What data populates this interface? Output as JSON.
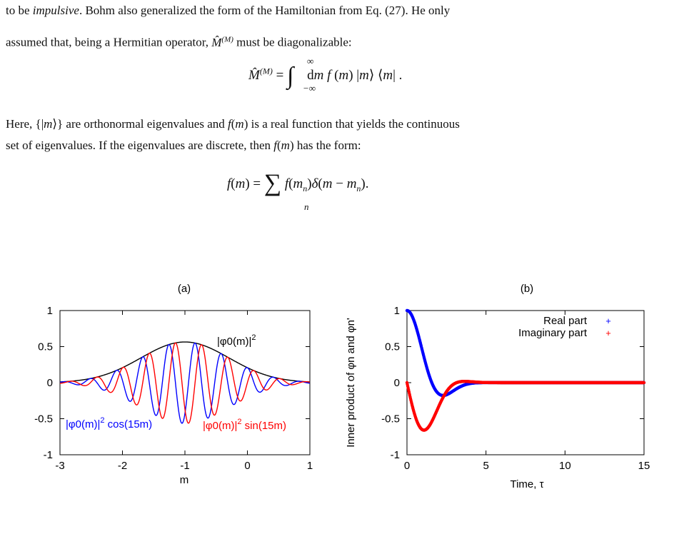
{
  "text": {
    "line1_italic": "impulsive",
    "line1_pre": "to be ",
    "line1_post": ".  Bohm also generalized the form of the Hamiltonian from Eq.  (27).  He only",
    "line2": "assumed that, being a Hermitian operator,",
    "line2_end": "must be diagonalizable:",
    "line3_pre": "Here, {|",
    "line3_mid": "⟩} are orthonormal eigenvalues and",
    "line3_post": "is a real function that yields the continuous",
    "line4_pre": "set of eigenvalues. If the eigenvalues are discrete, then",
    "line4_post": "has the form:"
  },
  "chart_data": [
    {
      "type": "line",
      "title": "(a)",
      "xlabel": "m",
      "ylabel": "",
      "xlim": [
        -3,
        1
      ],
      "ylim": [
        -1,
        1
      ],
      "xticks": [
        "-3",
        "-2",
        "-1",
        "0",
        "1"
      ],
      "yticks": [
        "1",
        "0.5",
        "0",
        "-0.5",
        "-1"
      ],
      "series": [
        {
          "name": "|φ0(m)|2",
          "color": "#000000",
          "formula": "0.5642*exp(-(m+1)^2)"
        },
        {
          "name": "|φ0(m)|2 cos(15m)",
          "color": "#0000ff",
          "formula": "0.5642*exp(-(m+1)^2)*cos(15m)"
        },
        {
          "name": "|φ0(m)|2 sin(15m)",
          "color": "#ff0000",
          "formula": "0.5642*exp(-(m+1)^2)*sin(15m)"
        }
      ],
      "annotations": {
        "black_label": "|φ0(m)|",
        "black_sup": "2",
        "blue_label_a": "|φ0(m)|",
        "blue_sup": "2",
        "blue_label_b": " cos(15m)",
        "red_label_a": "|φ0(m)|",
        "red_sup": "2",
        "red_label_b": " sin(15m)"
      }
    },
    {
      "type": "scatter",
      "title": "(b)",
      "xlabel": "Time, τ",
      "ylabel": "Inner product of φn and φn'",
      "xlim": [
        0,
        15
      ],
      "ylim": [
        -1,
        1
      ],
      "xticks": [
        "0",
        "5",
        "10",
        "15"
      ],
      "yticks": [
        "1",
        "0.5",
        "0",
        "-0.5",
        "-1"
      ],
      "legend_position": "top-right",
      "series": [
        {
          "name": "Real part",
          "color": "#0000ff",
          "formula": "exp(-t^2/4)*cos(t)"
        },
        {
          "name": "Imaginary part",
          "color": "#ff0000",
          "formula": "-exp(-t^2/4)*sin(t)"
        }
      ]
    }
  ]
}
